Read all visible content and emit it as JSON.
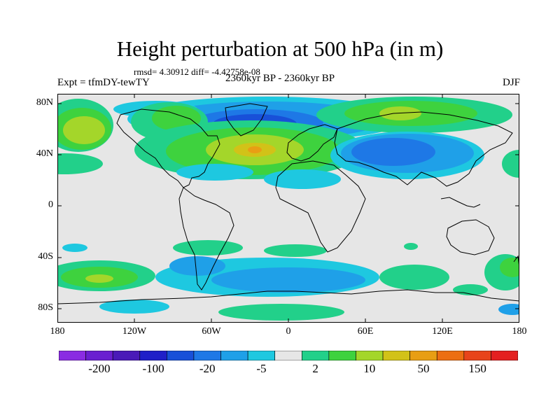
{
  "header": {
    "title": "Height perturbation at 500 hPa (in m)",
    "stats": "rmsd= 4.30912 diff= -4.42758e-08",
    "experiment": "Expt = tfmDY-tewTY",
    "period": "2360kyr BP - 2360kyr BP",
    "season": "DJF"
  },
  "axes": {
    "lat_labels": [
      "80N",
      "40N",
      "0",
      "40S",
      "80S"
    ],
    "lon_labels": [
      "180",
      "120W",
      "60W",
      "0",
      "60E",
      "120E",
      "180"
    ]
  },
  "colorbar": {
    "colors": [
      "#8a2be2",
      "#6a1fd0",
      "#4a1ab8",
      "#2020c8",
      "#1850d8",
      "#1e78e6",
      "#1fa0e8",
      "#1ec8e0",
      "#e6e6e6",
      "#22d08a",
      "#3ed23e",
      "#a4d62a",
      "#d2c218",
      "#e89e14",
      "#ec6e12",
      "#e8441a",
      "#e42020"
    ],
    "labels": [
      "-200",
      "-100",
      "-20",
      "-5",
      "2",
      "10",
      "50",
      "150"
    ]
  },
  "field_colors": {
    "neutral": "#e6e6e6",
    "cyan": "#1ec8e0",
    "lightblue": "#1fa0e8",
    "blue": "#1e78e6",
    "deepblue": "#1850d8",
    "teal": "#22d08a",
    "green": "#3ed23e",
    "yellowgreen": "#a4d62a",
    "yellow": "#d2c218",
    "orange": "#e89e14"
  }
}
